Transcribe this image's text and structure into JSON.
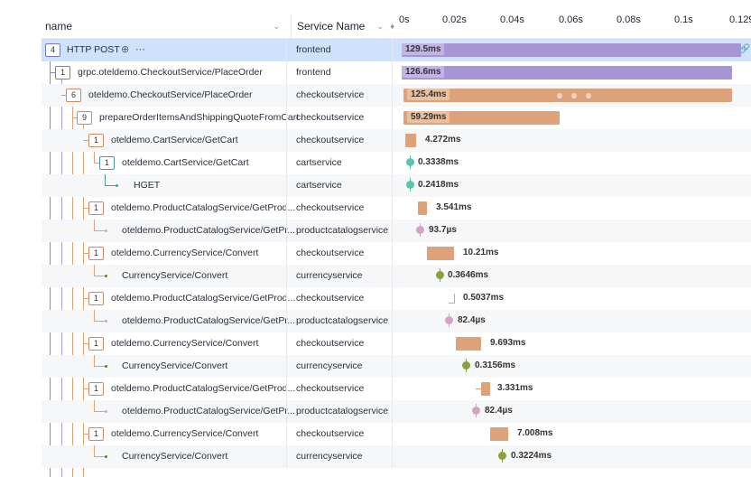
{
  "header": {
    "name_label": "name",
    "service_label": "Service Name",
    "ticks": [
      "0s",
      "0.02s",
      "0.04s",
      "0.06s",
      "0.08s",
      "0.1s",
      "0.129"
    ]
  },
  "colors": {
    "selected_row": "#cfe2fb",
    "frontend": "#a895d6",
    "checkout": "#dea27a",
    "cart": "#5fc3b0",
    "currency": "#8aa03a",
    "catalog": "#d6a3c6"
  },
  "rows": [
    {
      "badge": "4",
      "name": "HTTP POST",
      "service": "frontend",
      "duration": "129.5ms"
    },
    {
      "badge": "1",
      "name": "grpc.oteldemo.CheckoutService/PlaceOrder",
      "service": "frontend",
      "duration": "126.6ms"
    },
    {
      "badge": "6",
      "name": "oteldemo.CheckoutService/PlaceOrder",
      "service": "checkoutservice",
      "duration": "125.4ms"
    },
    {
      "badge": "9",
      "name": "prepareOrderItemsAndShippingQuoteFromCart",
      "service": "checkoutservice",
      "duration": "59.29ms"
    },
    {
      "badge": "1",
      "name": "oteldemo.CartService/GetCart",
      "service": "checkoutservice",
      "duration": "4.272ms"
    },
    {
      "badge": "1",
      "name": "oteldemo.CartService/GetCart",
      "service": "cartservice",
      "duration": "0.3338ms"
    },
    {
      "badge": "",
      "name": "HGET",
      "service": "cartservice",
      "duration": "0.2418ms"
    },
    {
      "badge": "1",
      "name": "oteldemo.ProductCatalogService/GetProd...",
      "service": "checkoutservice",
      "duration": "3.541ms"
    },
    {
      "badge": "",
      "name": "oteldemo.ProductCatalogService/GetPr...",
      "service": "productcatalogservice",
      "duration": "93.7µs"
    },
    {
      "badge": "1",
      "name": "oteldemo.CurrencyService/Convert",
      "service": "checkoutservice",
      "duration": "10.21ms"
    },
    {
      "badge": "",
      "name": "CurrencyService/Convert",
      "service": "currencyservice",
      "duration": "0.3646ms"
    },
    {
      "badge": "1",
      "name": "oteldemo.ProductCatalogService/GetProd...",
      "service": "checkoutservice",
      "duration": "0.5037ms"
    },
    {
      "badge": "",
      "name": "oteldemo.ProductCatalogService/GetPr...",
      "service": "productcatalogservice",
      "duration": "82.4µs"
    },
    {
      "badge": "1",
      "name": "oteldemo.CurrencyService/Convert",
      "service": "checkoutservice",
      "duration": "9.693ms"
    },
    {
      "badge": "",
      "name": "CurrencyService/Convert",
      "service": "currencyservice",
      "duration": "0.3156ms"
    },
    {
      "badge": "1",
      "name": "oteldemo.ProductCatalogService/GetProd...",
      "service": "checkoutservice",
      "duration": "3.331ms"
    },
    {
      "badge": "",
      "name": "oteldemo.ProductCatalogService/GetPr...",
      "service": "productcatalogservice",
      "duration": "82.4µs"
    },
    {
      "badge": "1",
      "name": "oteldemo.CurrencyService/Convert",
      "service": "checkoutservice",
      "duration": "7.008ms"
    },
    {
      "badge": "",
      "name": "CurrencyService/Convert",
      "service": "currencyservice",
      "duration": "0.3224ms"
    }
  ]
}
